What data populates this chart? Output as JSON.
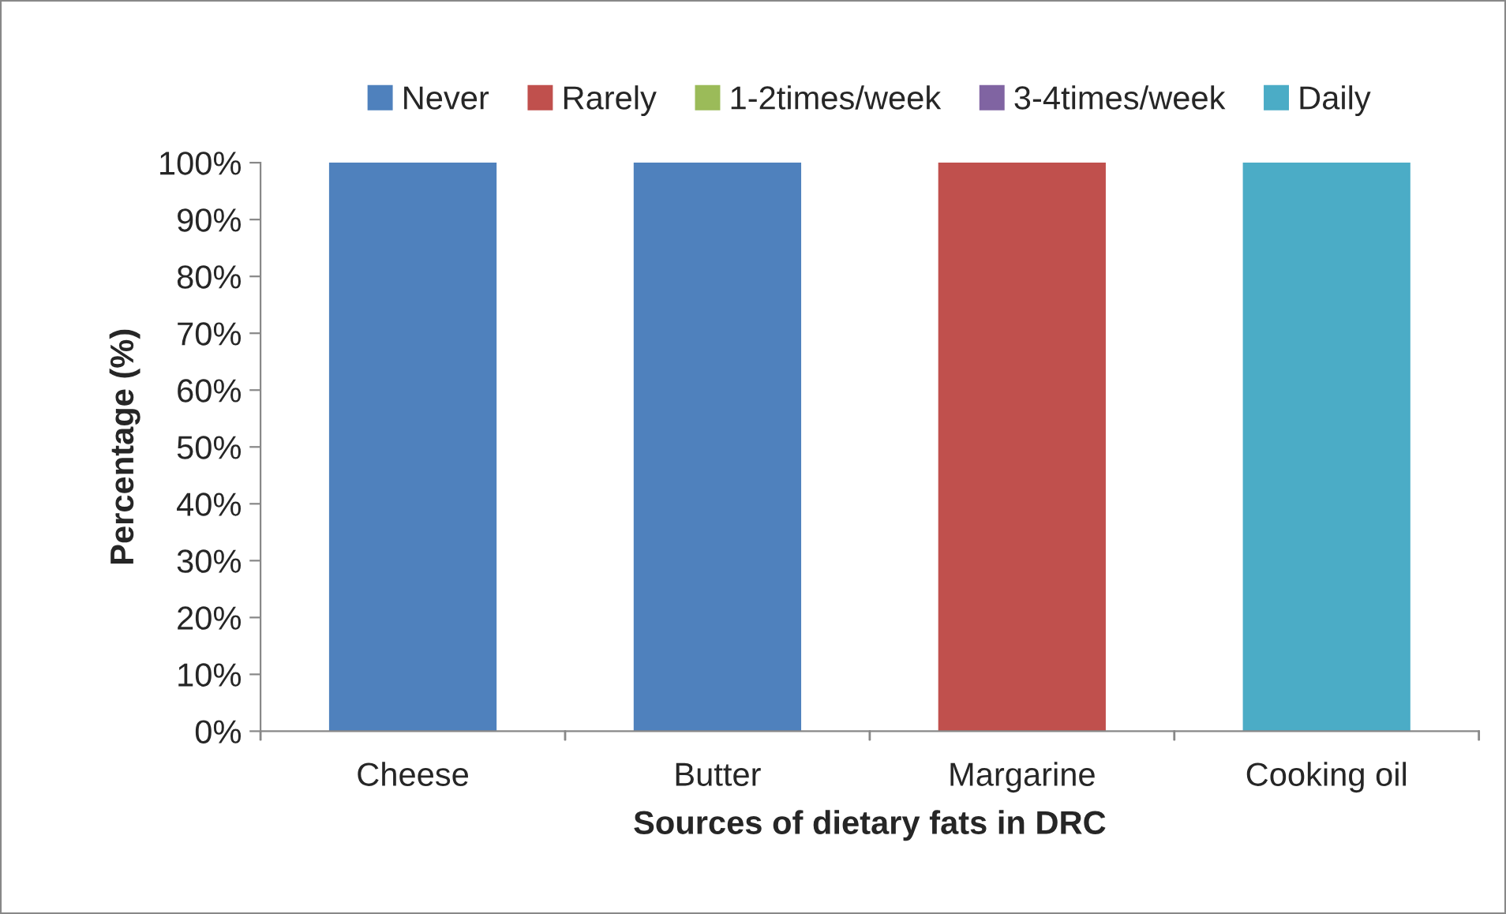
{
  "chart_data": {
    "type": "bar",
    "stacked": true,
    "xlabel": "Sources of dietary fats in DRC",
    "ylabel": "Percentage (%)",
    "categories": [
      "Cheese",
      "Butter",
      "Margarine",
      "Cooking oil"
    ],
    "series": [
      {
        "name": "Never",
        "color": "#4f81bd",
        "values": [
          100,
          100,
          0,
          0
        ]
      },
      {
        "name": "Rarely",
        "color": "#c0504d",
        "values": [
          0,
          0,
          100,
          0
        ]
      },
      {
        "name": "1-2times/week",
        "color": "#9bbb59",
        "values": [
          0,
          0,
          0,
          0
        ]
      },
      {
        "name": "3-4times/week",
        "color": "#8064a2",
        "values": [
          0,
          0,
          0,
          0
        ]
      },
      {
        "name": "Daily",
        "color": "#4bacc6",
        "values": [
          0,
          0,
          0,
          100
        ]
      }
    ],
    "ylim": [
      0,
      100
    ],
    "yticks": [
      {
        "value": 0,
        "label": "0%"
      },
      {
        "value": 10,
        "label": "10%"
      },
      {
        "value": 20,
        "label": "20%"
      },
      {
        "value": 30,
        "label": "30%"
      },
      {
        "value": 40,
        "label": "40%"
      },
      {
        "value": 50,
        "label": "50%"
      },
      {
        "value": 60,
        "label": "60%"
      },
      {
        "value": 70,
        "label": "70%"
      },
      {
        "value": 80,
        "label": "80%"
      },
      {
        "value": 90,
        "label": "90%"
      },
      {
        "value": 100,
        "label": "100%"
      }
    ],
    "grid": false,
    "legend": "top"
  }
}
